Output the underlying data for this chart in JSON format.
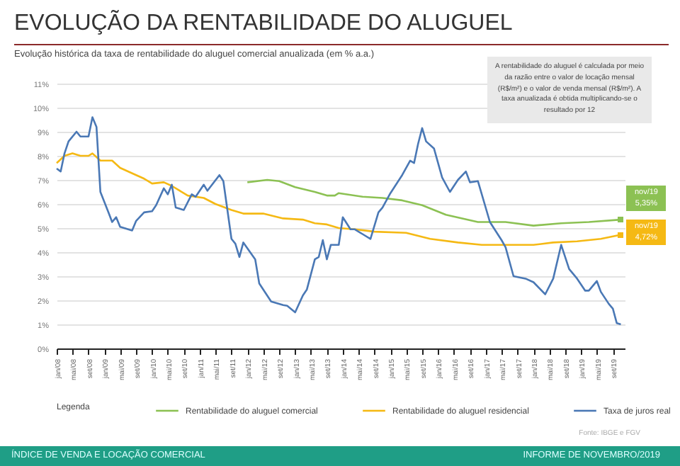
{
  "chart_data": {
    "type": "line",
    "title": "EVOLUÇÃO DA RENTABILIDADE DO ALUGUEL",
    "subtitle": "Evolução histórica da taxa de rentabilidade do aluguel comercial anualizada (em % a.a.)",
    "legend_title": "Legenda",
    "legend": "bottom",
    "grid": "y",
    "line_style": "solid",
    "xlim": [
      "2008-01",
      "2019-12"
    ],
    "xticks": [
      {
        "value": "2008-01",
        "label": "jan/08"
      },
      {
        "value": "2008-05",
        "label": "mai/08"
      },
      {
        "value": "2008-09",
        "label": "set/08"
      },
      {
        "value": "2009-01",
        "label": "jan/09"
      },
      {
        "value": "2009-05",
        "label": "mai/09"
      },
      {
        "value": "2009-09",
        "label": "set/09"
      },
      {
        "value": "2010-01",
        "label": "jan/10"
      },
      {
        "value": "2010-05",
        "label": "mai/10"
      },
      {
        "value": "2010-09",
        "label": "set/10"
      },
      {
        "value": "2011-01",
        "label": "jan/11"
      },
      {
        "value": "2011-05",
        "label": "mai/11"
      },
      {
        "value": "2011-09",
        "label": "set/11"
      },
      {
        "value": "2012-01",
        "label": "jan/12"
      },
      {
        "value": "2012-05",
        "label": "mai/12"
      },
      {
        "value": "2012-09",
        "label": "set/12"
      },
      {
        "value": "2013-01",
        "label": "jan/13"
      },
      {
        "value": "2013-05",
        "label": "mai/13"
      },
      {
        "value": "2013-09",
        "label": "set/13"
      },
      {
        "value": "2014-01",
        "label": "jan/14"
      },
      {
        "value": "2014-05",
        "label": "mai/14"
      },
      {
        "value": "2014-09",
        "label": "set/14"
      },
      {
        "value": "2015-01",
        "label": "jan/15"
      },
      {
        "value": "2015-05",
        "label": "mai/15"
      },
      {
        "value": "2015-09",
        "label": "set/15"
      },
      {
        "value": "2016-01",
        "label": "jan/16"
      },
      {
        "value": "2016-05",
        "label": "mai/16"
      },
      {
        "value": "2016-09",
        "label": "set/16"
      },
      {
        "value": "2017-01",
        "label": "jan/17"
      },
      {
        "value": "2017-05",
        "label": "mai/17"
      },
      {
        "value": "2017-09",
        "label": "set/17"
      },
      {
        "value": "2018-01",
        "label": "jan/18"
      },
      {
        "value": "2018-05",
        "label": "mai/18"
      },
      {
        "value": "2018-09",
        "label": "set/18"
      },
      {
        "value": "2019-01",
        "label": "jan/19"
      },
      {
        "value": "2019-05",
        "label": "mai/19"
      },
      {
        "value": "2019-09",
        "label": "set/19"
      }
    ],
    "ylim": [
      0,
      11
    ],
    "yticks": [
      {
        "value": 0,
        "label": "0%"
      },
      {
        "value": 1,
        "label": "1%"
      },
      {
        "value": 2,
        "label": "2%"
      },
      {
        "value": 3,
        "label": "3%"
      },
      {
        "value": 4,
        "label": "4%"
      },
      {
        "value": 5,
        "label": "5%"
      },
      {
        "value": 6,
        "label": "6%"
      },
      {
        "value": 7,
        "label": "7%"
      },
      {
        "value": 8,
        "label": "8%"
      },
      {
        "value": 9,
        "label": "9%"
      },
      {
        "value": 10,
        "label": "10%"
      },
      {
        "value": 11,
        "label": "11%"
      }
    ],
    "series": [
      {
        "name": "Rentabilidade do aluguel comercial",
        "color": "#8cc153",
        "x": [
          "2012-01",
          "2012-06",
          "2012-09",
          "2013-01",
          "2013-06",
          "2013-09",
          "2013-11",
          "2013-12",
          "2014-06",
          "2014-11",
          "2015-04",
          "2015-09",
          "2016-03",
          "2016-11",
          "2017-06",
          "2018-01",
          "2018-08",
          "2019-03",
          "2019-11"
        ],
        "values": [
          6.9,
          7.0,
          6.95,
          6.7,
          6.5,
          6.35,
          6.35,
          6.45,
          6.3,
          6.25,
          6.15,
          5.95,
          5.55,
          5.25,
          5.25,
          5.1,
          5.2,
          5.25,
          5.35
        ]
      },
      {
        "name": "Rentabilidade do aluguel residencial",
        "color": "#f5b914",
        "x": [
          "2008-01",
          "2008-03",
          "2008-05",
          "2008-07",
          "2008-09",
          "2008-10",
          "2008-12",
          "2009-03",
          "2009-05",
          "2009-09",
          "2009-11",
          "2010-01",
          "2010-04",
          "2010-06",
          "2010-10",
          "2011-02",
          "2011-05",
          "2011-09",
          "2011-12",
          "2012-05",
          "2012-10",
          "2013-03",
          "2013-06",
          "2013-09",
          "2013-12",
          "2014-04",
          "2014-09",
          "2015-05",
          "2015-11",
          "2016-06",
          "2016-12",
          "2017-06",
          "2018-01",
          "2018-06",
          "2018-12",
          "2019-06",
          "2019-11"
        ],
        "values": [
          7.7,
          8.0,
          8.1,
          8.0,
          8.0,
          8.1,
          7.8,
          7.8,
          7.5,
          7.2,
          7.05,
          6.85,
          6.9,
          6.75,
          6.35,
          6.25,
          6.0,
          5.75,
          5.6,
          5.6,
          5.4,
          5.35,
          5.2,
          5.15,
          5.0,
          4.95,
          4.85,
          4.8,
          4.55,
          4.4,
          4.3,
          4.3,
          4.3,
          4.4,
          4.45,
          4.55,
          4.72
        ]
      },
      {
        "name": "Taxa de juros real",
        "color": "#4a78b5",
        "x": [
          "2008-01",
          "2008-02",
          "2008-03",
          "2008-04",
          "2008-06",
          "2008-07",
          "2008-09",
          "2008-10",
          "2008-11",
          "2008-12",
          "2009-02",
          "2009-03",
          "2009-04",
          "2009-05",
          "2009-08",
          "2009-09",
          "2009-11",
          "2010-01",
          "2010-02",
          "2010-04",
          "2010-05",
          "2010-06",
          "2010-07",
          "2010-09",
          "2010-11",
          "2010-12",
          "2011-02",
          "2011-03",
          "2011-06",
          "2011-07",
          "2011-09",
          "2011-10",
          "2011-11",
          "2011-12",
          "2012-03",
          "2012-04",
          "2012-07",
          "2012-10",
          "2012-11",
          "2013-01",
          "2013-03",
          "2013-04",
          "2013-06",
          "2013-07",
          "2013-08",
          "2013-09",
          "2013-10",
          "2013-12",
          "2014-01",
          "2014-03",
          "2014-04",
          "2014-06",
          "2014-08",
          "2014-10",
          "2014-11",
          "2015-01",
          "2015-04",
          "2015-06",
          "2015-07",
          "2015-08",
          "2015-09",
          "2015-10",
          "2015-12",
          "2016-02",
          "2016-04",
          "2016-06",
          "2016-08",
          "2016-09",
          "2016-11",
          "2017-02",
          "2017-05",
          "2017-06",
          "2017-08",
          "2017-11",
          "2018-01",
          "2018-04",
          "2018-06",
          "2018-08",
          "2018-10",
          "2018-12",
          "2019-02",
          "2019-03",
          "2019-05",
          "2019-06",
          "2019-08",
          "2019-09",
          "2019-10",
          "2019-11"
        ],
        "values": [
          7.47,
          7.35,
          8.1,
          8.6,
          9.0,
          8.8,
          8.8,
          9.6,
          9.2,
          6.5,
          5.65,
          5.25,
          5.45,
          5.05,
          4.9,
          5.3,
          5.65,
          5.7,
          5.95,
          6.65,
          6.4,
          6.8,
          5.85,
          5.75,
          6.4,
          6.3,
          6.8,
          6.55,
          7.2,
          6.95,
          4.55,
          4.35,
          3.8,
          4.4,
          3.7,
          2.7,
          1.95,
          1.8,
          1.77,
          1.5,
          2.2,
          2.45,
          3.7,
          3.8,
          4.5,
          3.7,
          4.3,
          4.3,
          5.45,
          4.95,
          4.95,
          4.75,
          4.55,
          5.65,
          5.85,
          6.45,
          7.2,
          7.8,
          7.7,
          8.5,
          9.15,
          8.6,
          8.3,
          7.1,
          6.5,
          7.0,
          7.35,
          6.9,
          6.95,
          5.25,
          4.5,
          4.2,
          3.0,
          2.9,
          2.75,
          2.25,
          2.9,
          4.3,
          3.3,
          2.9,
          2.4,
          2.4,
          2.8,
          2.35,
          1.85,
          1.65,
          1.05,
          1.0
        ]
      }
    ],
    "annotations": [
      "A rentabilidade do aluguel é calculada por meio da razão entre o valor de locação mensal (R$/m²) e o valor de venda mensal (R$/m²). A taxa anualizada é obtida multiplicando-se o resultado por 12",
      {
        "text": "nov/19\n5,35%",
        "x": "2019-11",
        "y": 5.35
      },
      {
        "text": "nov/19\n4,72%",
        "x": "2019-11",
        "y": 4.72
      },
      "Fonte: IBGE e FGV",
      "ÍNDICE DE VENDA E LOCAÇÃO COMERCIAL",
      "INFORME DE NOVEMBRO/2019"
    ]
  }
}
